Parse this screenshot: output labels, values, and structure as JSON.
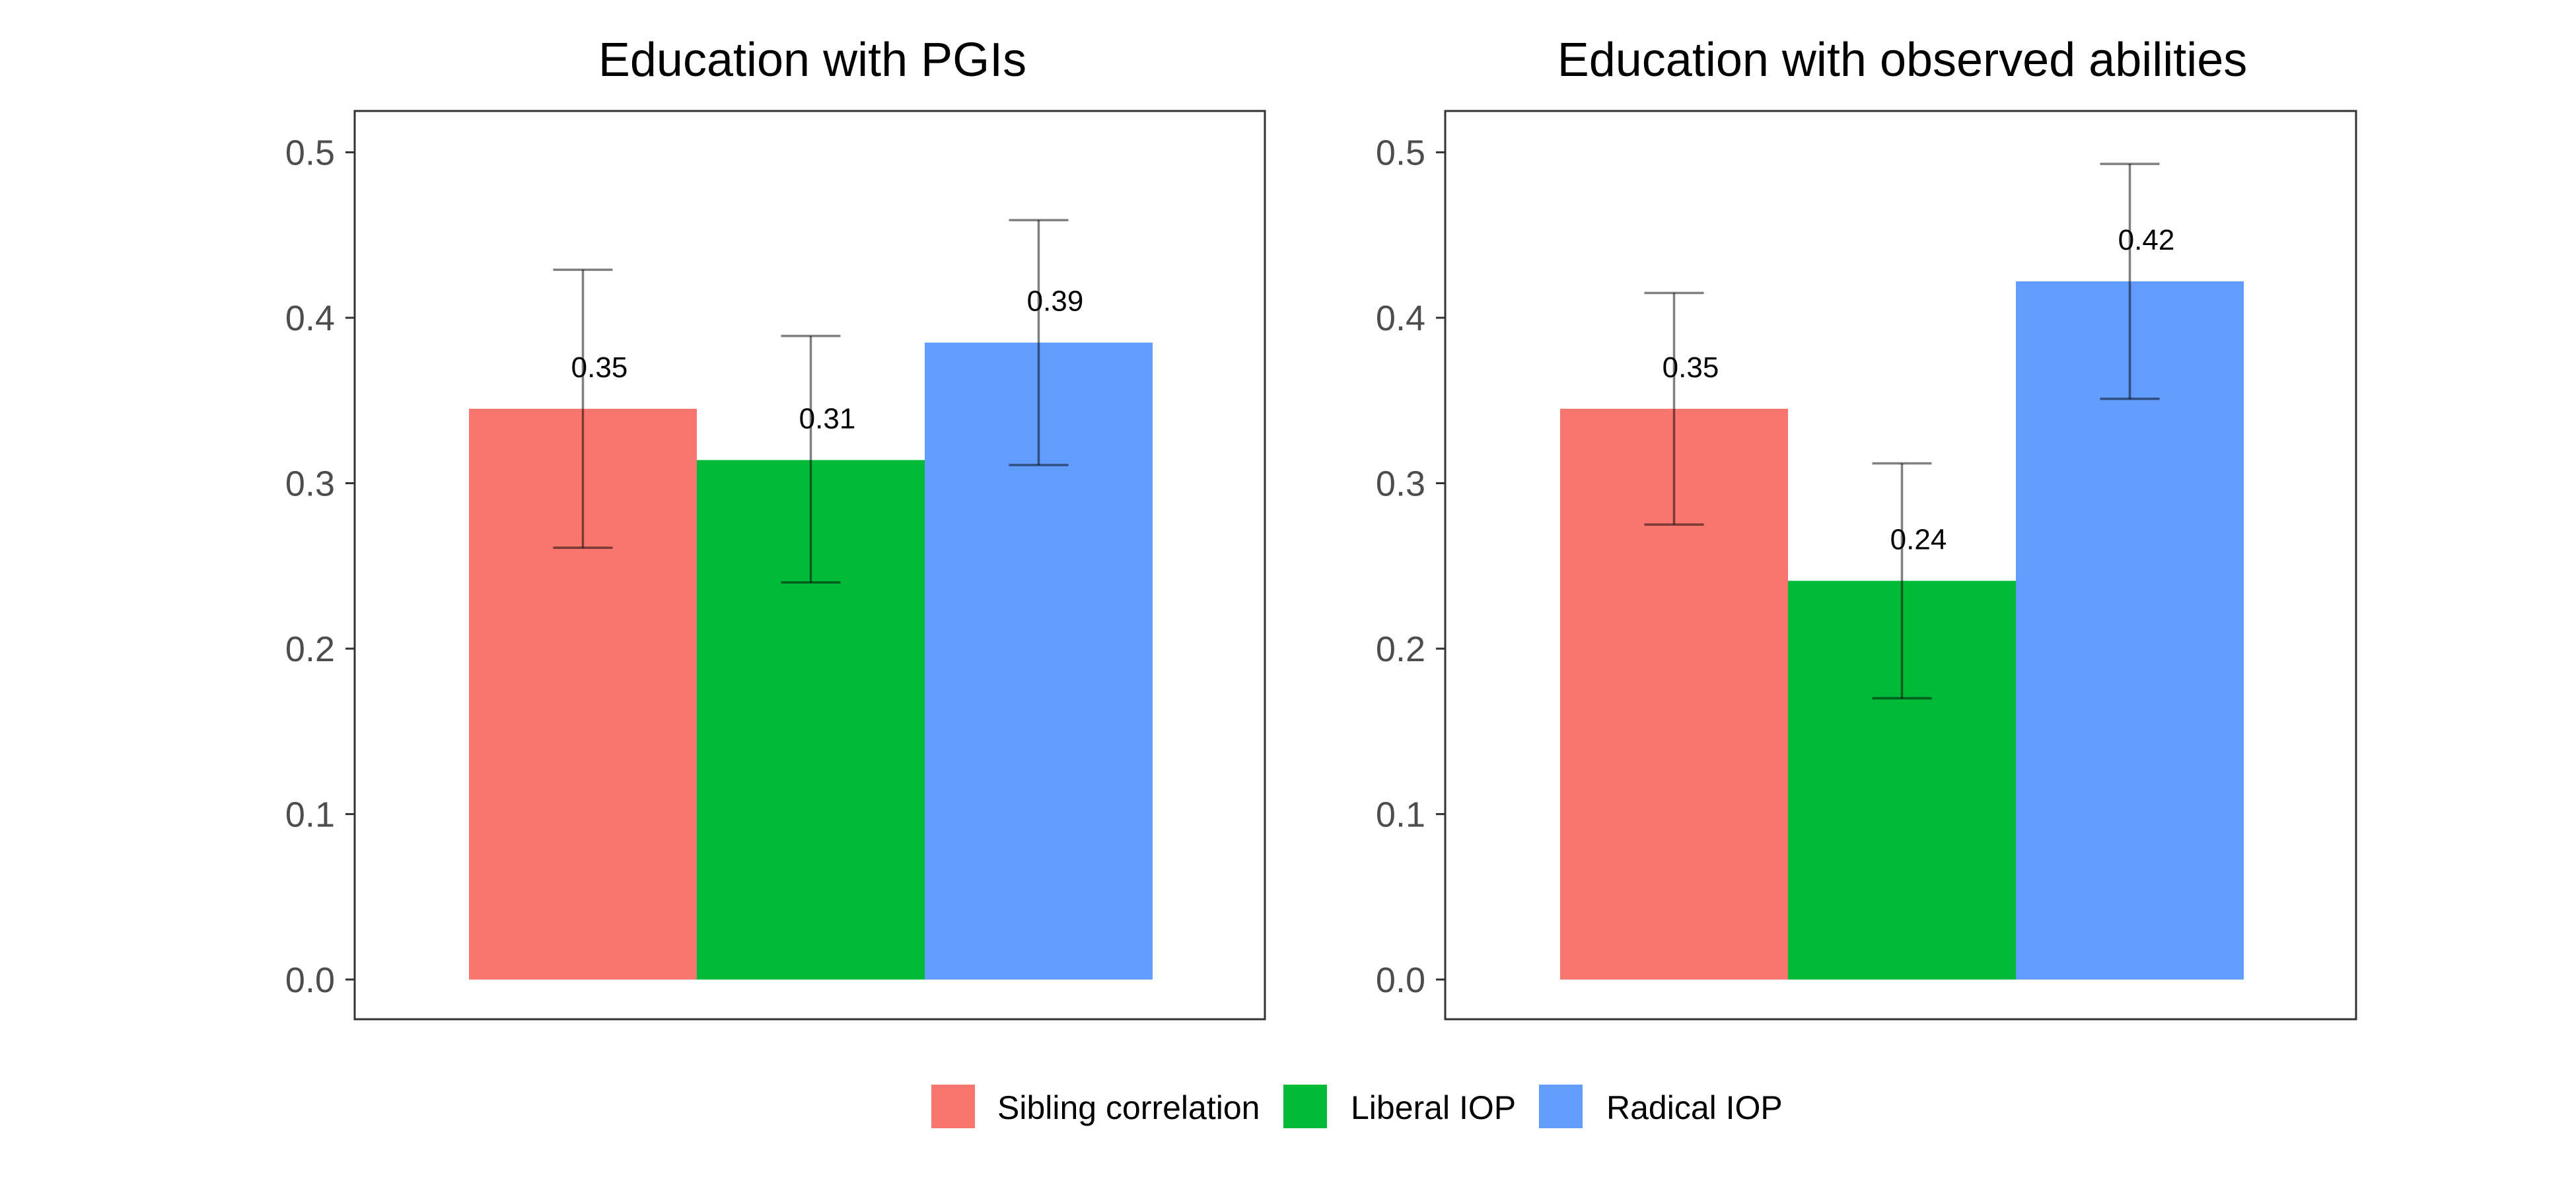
{
  "chart_data": [
    {
      "type": "bar",
      "title": "Education with PGIs",
      "categories": [
        "Sibling correlation",
        "Liberal IOP",
        "Radical IOP"
      ],
      "values": [
        0.345,
        0.314,
        0.385
      ],
      "error_low": [
        0.261,
        0.24,
        0.311
      ],
      "error_high": [
        0.429,
        0.389,
        0.459
      ],
      "data_labels": [
        "0.35",
        "0.31",
        "0.39"
      ],
      "ylim": [
        -0.024,
        0.525
      ],
      "yticks": [
        0.0,
        0.1,
        0.2,
        0.3,
        0.4,
        0.5
      ],
      "ytick_labels": [
        "0.0",
        "0.1",
        "0.2",
        "0.3",
        "0.4",
        "0.5"
      ],
      "xlabel": "",
      "ylabel": "",
      "grid": false
    },
    {
      "type": "bar",
      "title": "Education with observed abilities",
      "categories": [
        "Sibling correlation",
        "Liberal IOP",
        "Radical IOP"
      ],
      "values": [
        0.345,
        0.241,
        0.422
      ],
      "error_low": [
        0.275,
        0.17,
        0.351
      ],
      "error_high": [
        0.415,
        0.312,
        0.493
      ],
      "data_labels": [
        "0.35",
        "0.24",
        "0.42"
      ],
      "ylim": [
        -0.024,
        0.525
      ],
      "yticks": [
        0.0,
        0.1,
        0.2,
        0.3,
        0.4,
        0.5
      ],
      "ytick_labels": [
        "0.0",
        "0.1",
        "0.2",
        "0.3",
        "0.4",
        "0.5"
      ],
      "xlabel": "",
      "ylabel": "",
      "grid": false
    }
  ],
  "legend": {
    "position": "bottom",
    "items": [
      {
        "label": "Sibling correlation",
        "color": "#F8766D"
      },
      {
        "label": "Liberal IOP",
        "color": "#00BA38"
      },
      {
        "label": "Radical IOP",
        "color": "#619CFF"
      }
    ]
  },
  "colors": {
    "sibling": "#F8766D",
    "liberal": "#00BA38",
    "radical": "#619CFF"
  }
}
